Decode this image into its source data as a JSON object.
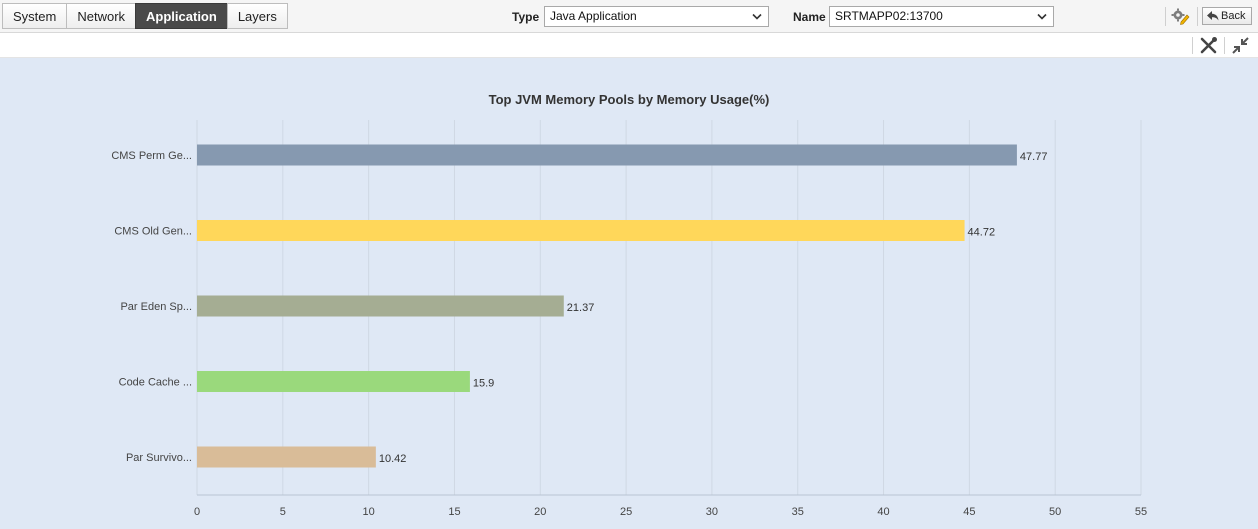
{
  "tabs": [
    {
      "label": "System",
      "active": false
    },
    {
      "label": "Network",
      "active": false
    },
    {
      "label": "Application",
      "active": true
    },
    {
      "label": "Layers",
      "active": false
    }
  ],
  "filters": {
    "type_label": "Type",
    "type_value": "Java Application",
    "name_label": "Name",
    "name_value": "SRTMAPP02:13700"
  },
  "toolbar": {
    "back_label": "Back",
    "settings_icon": "gear-pencil-icon",
    "tools_icon": "tools-icon",
    "collapse_icon": "collapse-icon"
  },
  "chart_data": {
    "type": "bar",
    "orientation": "horizontal",
    "title": "Top JVM Memory Pools by Memory Usage(%)",
    "categories": [
      "CMS Perm Ge...",
      "CMS Old Gen...",
      "Par Eden Sp...",
      "Code Cache ...",
      "Par Survivo..."
    ],
    "values": [
      47.77,
      44.72,
      21.37,
      15.9,
      10.42
    ],
    "value_labels": [
      "47.77",
      "44.72",
      "21.37",
      "15.9",
      "10.42"
    ],
    "colors": [
      "#8699b0",
      "#ffd75a",
      "#a5ad93",
      "#9ad97c",
      "#d9bc98"
    ],
    "xlim": [
      0,
      55
    ],
    "xticks": [
      0,
      5,
      10,
      15,
      20,
      25,
      30,
      35,
      40,
      45,
      50,
      55
    ],
    "grid": true,
    "xlabel": "",
    "ylabel": ""
  }
}
